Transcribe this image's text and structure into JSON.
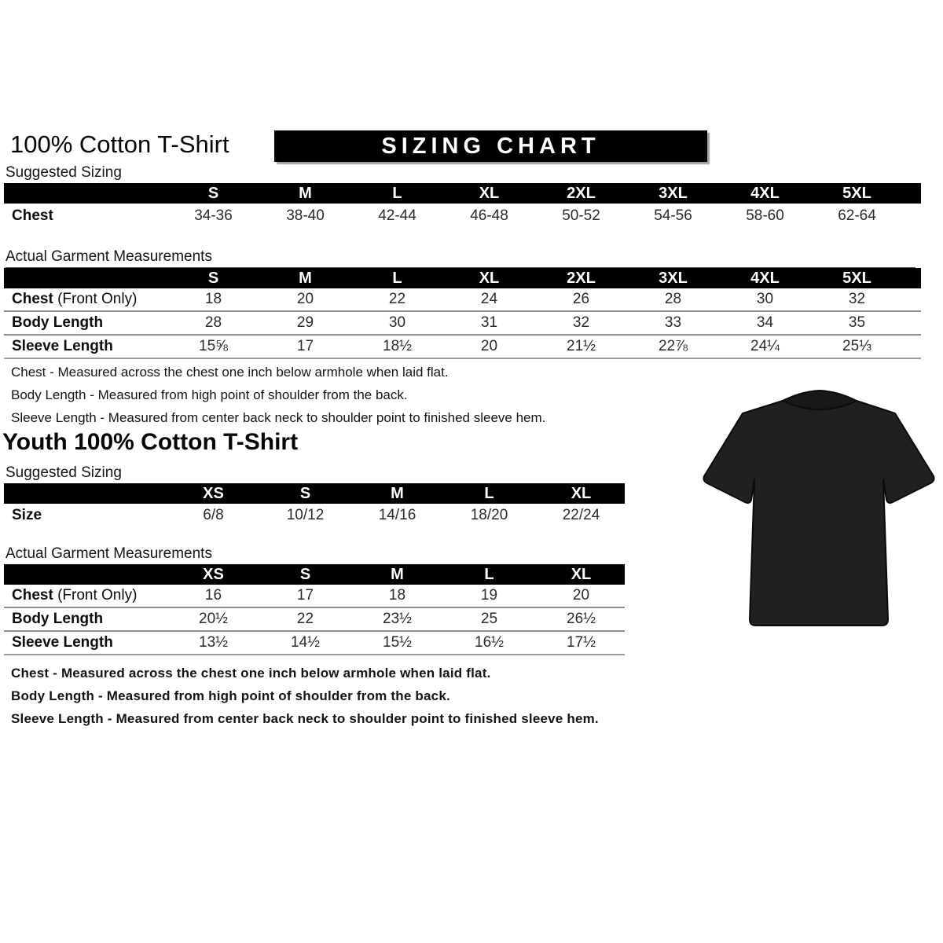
{
  "page": {
    "title": "100% Cotton T-Shirt",
    "banner": "SIZING CHART",
    "youth_title": "Youth 100% Cotton T-Shirt",
    "suggested_label": "Suggested Sizing",
    "garment_label": "Actual Garment Measurements"
  },
  "notes": {
    "chest": "Chest - Measured across the chest one inch below armhole when laid flat.",
    "body": "Body Length - Measured from high point of shoulder from the back.",
    "sleeve": "Sleeve Length - Measured from center back neck to shoulder point to finished sleeve hem."
  },
  "adult": {
    "suggested": {
      "headers": [
        "S",
        "M",
        "L",
        "XL",
        "2XL",
        "3XL",
        "4XL",
        "5XL"
      ],
      "rows": [
        {
          "label": "Chest",
          "label_suffix": "",
          "values": [
            "34-36",
            "38-40",
            "42-44",
            "46-48",
            "50-52",
            "54-56",
            "58-60",
            "62-64"
          ]
        }
      ]
    },
    "garment": {
      "headers": [
        "S",
        "M",
        "L",
        "XL",
        "2XL",
        "3XL",
        "4XL",
        "5XL"
      ],
      "rows": [
        {
          "label": "Chest",
          "label_suffix": " (Front Only)",
          "values": [
            "18",
            "20",
            "22",
            "24",
            "26",
            "28",
            "30",
            "32"
          ]
        },
        {
          "label": "Body Length",
          "label_suffix": "",
          "values": [
            "28",
            "29",
            "30",
            "31",
            "32",
            "33",
            "34",
            "35"
          ]
        },
        {
          "label": "Sleeve Length",
          "label_suffix": "",
          "values": [
            "15⅝",
            "17",
            "18½",
            "20",
            "21½",
            "22⅞",
            "24¼",
            "25⅓"
          ]
        }
      ]
    }
  },
  "youth": {
    "suggested": {
      "headers": [
        "XS",
        "S",
        "M",
        "L",
        "XL"
      ],
      "rows": [
        {
          "label": "Size",
          "label_suffix": "",
          "values": [
            "6/8",
            "10/12",
            "14/16",
            "18/20",
            "22/24"
          ]
        }
      ]
    },
    "garment": {
      "headers": [
        "XS",
        "S",
        "M",
        "L",
        "XL"
      ],
      "rows": [
        {
          "label": "Chest",
          "label_suffix": " (Front Only)",
          "values": [
            "16",
            "17",
            "18",
            "19",
            "20"
          ]
        },
        {
          "label": "Body Length",
          "label_suffix": "",
          "values": [
            "20½",
            "22",
            "23½",
            "25",
            "26½"
          ]
        },
        {
          "label": "Sleeve Length",
          "label_suffix": "",
          "values": [
            "13½",
            "14½",
            "15½",
            "16½",
            "17½"
          ]
        }
      ]
    }
  },
  "tshirt": {
    "name": "black-short-sleeve-tshirt",
    "color": "#202020",
    "collar_color": "#181818"
  },
  "colors": {
    "header_bg": "#000000",
    "header_text": "#ffffff",
    "row_divider": "#8d8d8d"
  }
}
